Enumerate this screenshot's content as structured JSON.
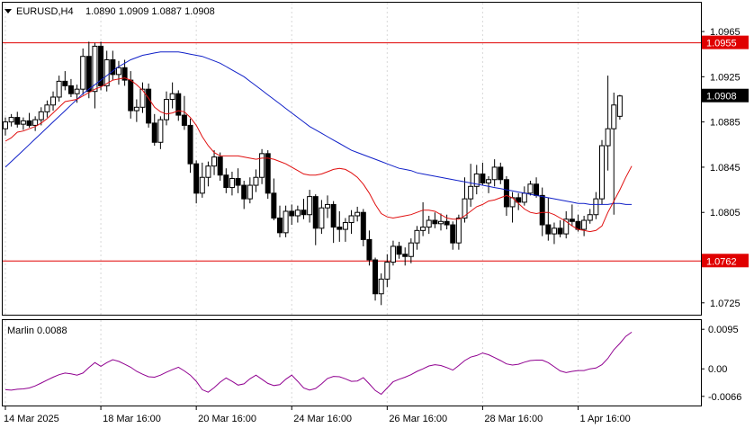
{
  "chart_data": [
    {
      "type": "candlestick",
      "symbol_label": "EURUSD,H4",
      "ohlc_label": "1.0890 1.0909 1.0887 1.0908",
      "y_ticks": [
        "1.0965",
        "1.0925",
        "1.0885",
        "1.0845",
        "1.0805",
        "1.0765",
        "1.0725"
      ],
      "ylim": [
        1.07145,
        1.09905
      ],
      "x_ticks": [
        "14 Mar 2025",
        "18 Mar 16:00",
        "20 Mar 16:00",
        "24 Mar 16:00",
        "26 Mar 16:00",
        "28 Mar 16:00",
        "1 Apr 16:00"
      ],
      "x_tick_bars": [
        0,
        16,
        32,
        48,
        64,
        80,
        96
      ],
      "levels": [
        {
          "value": 1.0955,
          "label": "1.0955",
          "color": "#e00000"
        },
        {
          "value": 1.0762,
          "label": "1.0762",
          "color": "#e00000"
        }
      ],
      "current_price": {
        "value": 1.0908,
        "label": "1.0908"
      },
      "colors": {
        "candle": "#000000",
        "ma_fast": "#e01010",
        "ma_slow": "#1020c8",
        "level": "#e00000"
      },
      "candles": [
        [
          1.0879,
          1.0889,
          1.0873,
          1.0885
        ],
        [
          1.0885,
          1.0892,
          1.0881,
          1.0889
        ],
        [
          1.0889,
          1.0894,
          1.088,
          1.0883
        ],
        [
          1.0883,
          1.0889,
          1.0878,
          1.0886
        ],
        [
          1.0886,
          1.0893,
          1.088,
          1.0882
        ],
        [
          1.0882,
          1.089,
          1.0877,
          1.0887
        ],
        [
          1.0887,
          1.0898,
          1.0882,
          1.0894
        ],
        [
          1.0894,
          1.0904,
          1.0889,
          1.09
        ],
        [
          1.09,
          1.0912,
          1.0895,
          1.0907
        ],
        [
          1.0907,
          1.0926,
          1.0903,
          1.0921
        ],
        [
          1.0921,
          1.093,
          1.0913,
          1.0917
        ],
        [
          1.0917,
          1.0923,
          1.0907,
          1.091
        ],
        [
          1.091,
          1.0918,
          1.0902,
          1.0914
        ],
        [
          1.0914,
          1.095,
          1.0909,
          1.0943
        ],
        [
          1.0943,
          1.0956,
          1.0906,
          1.0912
        ],
        [
          1.0912,
          1.0955,
          1.0897,
          1.0952
        ],
        [
          1.0952,
          1.0956,
          1.0913,
          1.0917
        ],
        [
          1.0917,
          1.0948,
          1.0912,
          1.094
        ],
        [
          1.094,
          1.0948,
          1.0922,
          1.0927
        ],
        [
          1.0927,
          1.0939,
          1.0918,
          1.0933
        ],
        [
          1.0933,
          1.094,
          1.0917,
          1.0922
        ],
        [
          1.0922,
          1.093,
          1.0888,
          1.0895
        ],
        [
          1.0895,
          1.0905,
          1.0885,
          1.0898
        ],
        [
          1.0898,
          1.092,
          1.0893,
          1.0914
        ],
        [
          1.0914,
          1.0919,
          1.088,
          1.0884
        ],
        [
          1.0884,
          1.0892,
          1.0864,
          1.0867
        ],
        [
          1.0867,
          1.089,
          1.0861,
          1.0887
        ],
        [
          1.0887,
          1.0912,
          1.0882,
          1.0905
        ],
        [
          1.0905,
          1.092,
          1.0897,
          1.091
        ],
        [
          1.091,
          1.0913,
          1.0886,
          1.0891
        ],
        [
          1.0891,
          1.0908,
          1.0878,
          1.0882
        ],
        [
          1.0882,
          1.0888,
          1.084,
          1.0848
        ],
        [
          1.0848,
          1.0851,
          1.0813,
          1.0822
        ],
        [
          1.0822,
          1.0849,
          1.0818,
          1.0836
        ],
        [
          1.0836,
          1.085,
          1.0828,
          1.0846
        ],
        [
          1.0846,
          1.086,
          1.0838,
          1.0854
        ],
        [
          1.0854,
          1.0858,
          1.0833,
          1.0838
        ],
        [
          1.0838,
          1.0844,
          1.0822,
          1.0827
        ],
        [
          1.0827,
          1.0841,
          1.082,
          1.0835
        ],
        [
          1.0835,
          1.0844,
          1.0822,
          1.0829
        ],
        [
          1.0829,
          1.0833,
          1.0808,
          1.0817
        ],
        [
          1.0817,
          1.0836,
          1.0813,
          1.0829
        ],
        [
          1.0829,
          1.0843,
          1.0823,
          1.0836
        ],
        [
          1.0836,
          1.0861,
          1.083,
          1.0857
        ],
        [
          1.0857,
          1.086,
          1.0817,
          1.0822
        ],
        [
          1.0822,
          1.0835,
          1.0798,
          1.08
        ],
        [
          1.08,
          1.0811,
          1.0783,
          1.0787
        ],
        [
          1.0787,
          1.0811,
          1.0783,
          1.0806
        ],
        [
          1.0806,
          1.0812,
          1.0794,
          1.0802
        ],
        [
          1.0802,
          1.0811,
          1.0796,
          1.0807
        ],
        [
          1.0807,
          1.0817,
          1.0799,
          1.0803
        ],
        [
          1.0803,
          1.0825,
          1.0796,
          1.0819
        ],
        [
          1.0819,
          1.0821,
          1.0776,
          1.0791
        ],
        [
          1.0791,
          1.0816,
          1.0786,
          1.0809
        ],
        [
          1.0809,
          1.082,
          1.08,
          1.0812
        ],
        [
          1.0812,
          1.0815,
          1.0778,
          1.0792
        ],
        [
          1.0792,
          1.0806,
          1.0779,
          1.079
        ],
        [
          1.079,
          1.08,
          1.0779,
          1.0796
        ],
        [
          1.0796,
          1.0807,
          1.0786,
          1.0802
        ],
        [
          1.0802,
          1.081,
          1.0797,
          1.0805
        ],
        [
          1.0805,
          1.0808,
          1.0775,
          1.0781
        ],
        [
          1.0781,
          1.0789,
          1.0758,
          1.0763
        ],
        [
          1.0763,
          1.0765,
          1.0727,
          1.0733
        ],
        [
          1.0733,
          1.0751,
          1.0723,
          1.0746
        ],
        [
          1.0746,
          1.0768,
          1.0739,
          1.0761
        ],
        [
          1.0761,
          1.078,
          1.0758,
          1.0775
        ],
        [
          1.0775,
          1.0779,
          1.0764,
          1.0768
        ],
        [
          1.0768,
          1.0774,
          1.0758,
          1.0766
        ],
        [
          1.0766,
          1.0782,
          1.076,
          1.0778
        ],
        [
          1.0778,
          1.0793,
          1.0772,
          1.0789
        ],
        [
          1.0789,
          1.0814,
          1.0784,
          1.0792
        ],
        [
          1.0792,
          1.0802,
          1.0786,
          1.0798
        ],
        [
          1.0798,
          1.0805,
          1.0791,
          1.0795
        ],
        [
          1.0795,
          1.0804,
          1.0789,
          1.0797
        ],
        [
          1.0797,
          1.0803,
          1.079,
          1.0794
        ],
        [
          1.0794,
          1.0797,
          1.0772,
          1.0778
        ],
        [
          1.0778,
          1.0803,
          1.0772,
          1.08
        ],
        [
          1.08,
          1.0836,
          1.0796,
          1.0817
        ],
        [
          1.0817,
          1.0848,
          1.081,
          1.0828
        ],
        [
          1.0828,
          1.0847,
          1.0821,
          1.0839
        ],
        [
          1.0839,
          1.0849,
          1.0829,
          1.0831
        ],
        [
          1.0831,
          1.0837,
          1.0822,
          1.0834
        ],
        [
          1.0834,
          1.0852,
          1.0828,
          1.0845
        ],
        [
          1.0845,
          1.0849,
          1.083,
          1.0834
        ],
        [
          1.0834,
          1.0837,
          1.0802,
          1.081
        ],
        [
          1.081,
          1.0823,
          1.0796,
          1.0818
        ],
        [
          1.0818,
          1.0822,
          1.0807,
          1.0814
        ],
        [
          1.0814,
          1.0828,
          1.0811,
          1.0822
        ],
        [
          1.0822,
          1.0833,
          1.082,
          1.083
        ],
        [
          1.083,
          1.0836,
          1.0818,
          1.082
        ],
        [
          1.082,
          1.0827,
          1.0784,
          1.0794
        ],
        [
          1.0794,
          1.0818,
          1.078,
          1.0786
        ],
        [
          1.0786,
          1.0796,
          1.0777,
          1.0791
        ],
        [
          1.0791,
          1.0798,
          1.0783,
          1.0786
        ],
        [
          1.0786,
          1.0806,
          1.0782,
          1.0799
        ],
        [
          1.0799,
          1.0812,
          1.0793,
          1.0797
        ],
        [
          1.0797,
          1.0803,
          1.0788,
          1.079
        ],
        [
          1.079,
          1.0802,
          1.0784,
          1.0798
        ],
        [
          1.0798,
          1.0808,
          1.0795,
          1.0803
        ],
        [
          1.0803,
          1.0823,
          1.0799,
          1.0817
        ],
        [
          1.0817,
          1.0869,
          1.0812,
          1.0864
        ],
        [
          1.0864,
          1.0926,
          1.0842,
          1.0879
        ],
        [
          1.0879,
          1.0911,
          1.0803,
          1.09
        ],
        [
          1.089,
          1.0909,
          1.0887,
          1.0908
        ]
      ],
      "ma_fast": [
        1.0868,
        1.0871,
        1.0876,
        1.0877,
        1.0879,
        1.0881,
        1.0884,
        1.0888,
        1.0893,
        1.0898,
        1.0903,
        1.0904,
        1.0905,
        1.0908,
        1.0911,
        1.0914,
        1.0916,
        1.0919,
        1.0922,
        1.0923,
        1.0924,
        1.0922,
        1.0918,
        1.0913,
        1.0906,
        1.0898,
        1.0894,
        1.0892,
        1.0893,
        1.0895,
        1.0894,
        1.0889,
        1.0882,
        1.0872,
        1.0864,
        1.0858,
        1.0855,
        1.0855,
        1.0855,
        1.0855,
        1.0854,
        1.0853,
        1.0852,
        1.0853,
        1.0853,
        1.0852,
        1.085,
        1.0848,
        1.0845,
        1.0842,
        1.0839,
        1.0838,
        1.0838,
        1.0839,
        1.0841,
        1.0843,
        1.0844,
        1.0843,
        1.084,
        1.0836,
        1.083,
        1.0822,
        1.0812,
        1.0804,
        1.0801,
        1.08,
        1.0801,
        1.0802,
        1.0803,
        1.0805,
        1.0807,
        1.0807,
        1.0806,
        1.0803,
        1.08,
        1.0799,
        1.0799,
        1.0802,
        1.0806,
        1.081,
        1.0812,
        1.0815,
        1.0816,
        1.0818,
        1.082,
        1.0818,
        1.0813,
        1.0808,
        1.0805,
        1.0804,
        1.0805,
        1.0805,
        1.0803,
        1.08,
        1.0797,
        1.0793,
        1.079,
        1.0789,
        1.0788,
        1.0789,
        1.0793,
        1.0805,
        1.0815,
        1.0825,
        1.0836,
        1.0846
      ],
      "ma_slow": [
        1.0845,
        1.085,
        1.0855,
        1.086,
        1.0865,
        1.087,
        1.0875,
        1.088,
        1.0885,
        1.089,
        1.0895,
        1.09,
        1.0905,
        1.091,
        1.0914,
        1.0918,
        1.0922,
        1.0926,
        1.093,
        1.0934,
        1.0937,
        1.094,
        1.0942,
        1.0944,
        1.0945,
        1.0946,
        1.0947,
        1.0947,
        1.0947,
        1.0947,
        1.0946,
        1.0945,
        1.0944,
        1.0943,
        1.0941,
        1.0939,
        1.0937,
        1.0934,
        1.0931,
        1.0928,
        1.0925,
        1.0921,
        1.0917,
        1.0913,
        1.0909,
        1.0905,
        1.0901,
        1.0897,
        1.0893,
        1.0889,
        1.0885,
        1.0881,
        1.0878,
        1.0875,
        1.0872,
        1.0869,
        1.0866,
        1.0863,
        1.086,
        1.0858,
        1.0856,
        1.0854,
        1.0852,
        1.085,
        1.0848,
        1.0846,
        1.0844,
        1.0843,
        1.0842,
        1.084,
        1.0839,
        1.0838,
        1.0837,
        1.0836,
        1.0835,
        1.0834,
        1.0833,
        1.0832,
        1.0831,
        1.083,
        1.0829,
        1.0828,
        1.0827,
        1.0826,
        1.0825,
        1.0824,
        1.0823,
        1.0822,
        1.0821,
        1.082,
        1.0819,
        1.0818,
        1.0817,
        1.0816,
        1.0815,
        1.0814,
        1.0813,
        1.0813,
        1.0812,
        1.0812,
        1.0812,
        1.0812,
        1.0813,
        1.0813,
        1.0812,
        1.0812
      ]
    },
    {
      "type": "line",
      "label": "Marlin 0.0088",
      "y_ticks": [
        "0.0095",
        "0.00",
        "-0.0066"
      ],
      "ylim": [
        -0.0088,
        0.0117
      ],
      "color": "#900090",
      "values": [
        -0.005,
        -0.0051,
        -0.0049,
        -0.0048,
        -0.0046,
        -0.0041,
        -0.0034,
        -0.0027,
        -0.002,
        -0.0014,
        -0.001,
        -0.0012,
        -0.0015,
        -0.001,
        0.0003,
        0.0015,
        0.0006,
        0.0015,
        0.0022,
        0.0018,
        0.0011,
        0.0004,
        -0.0006,
        -0.0013,
        -0.0019,
        -0.002,
        -0.0015,
        -0.0008,
        -0.0002,
        0.0004,
        -0.0005,
        -0.0015,
        -0.003,
        -0.005,
        -0.0056,
        -0.0045,
        -0.0032,
        -0.0022,
        -0.003,
        -0.0039,
        -0.0036,
        -0.0024,
        -0.0015,
        -0.0025,
        -0.0035,
        -0.004,
        -0.0038,
        -0.0025,
        -0.0015,
        -0.003,
        -0.0046,
        -0.0051,
        -0.0047,
        -0.0036,
        -0.0023,
        -0.0018,
        -0.0019,
        -0.0024,
        -0.003,
        -0.0029,
        -0.0021,
        -0.0036,
        -0.0052,
        -0.0061,
        -0.0046,
        -0.0031,
        -0.0025,
        -0.002,
        -0.0014,
        -0.0006,
        0.0,
        0.0007,
        0.001,
        0.0008,
        0.0003,
        -0.0003,
        0.0008,
        0.002,
        0.0028,
        0.0032,
        0.0038,
        0.0034,
        0.0027,
        0.002,
        0.0012,
        0.0009,
        0.0011,
        0.0016,
        0.002,
        0.0021,
        0.0021,
        0.0015,
        0.0005,
        -0.0005,
        -0.0009,
        -0.0006,
        -0.0004,
        -0.0004,
        0.0,
        0.0002,
        0.001,
        0.0025,
        0.0046,
        0.0061,
        0.0078,
        0.0088
      ]
    }
  ]
}
